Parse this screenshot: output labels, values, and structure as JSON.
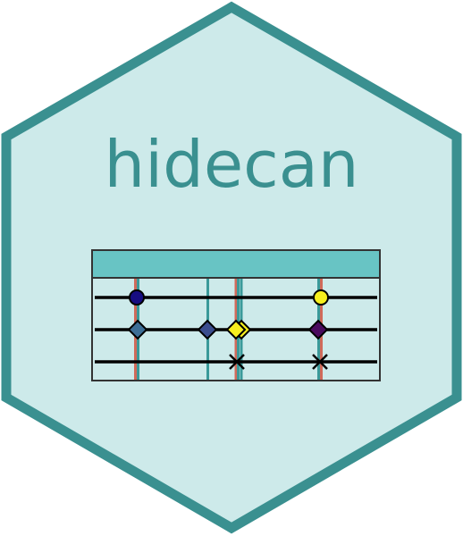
{
  "logo": {
    "title": "hidecan",
    "colors": {
      "background": "#cdeaea",
      "border": "#3a9090",
      "title": "#3a9090",
      "panel_header": "#68c4c4",
      "panel_border": "#333333",
      "teal_line": "#3a9a9a",
      "red_line": "#d06a5a"
    }
  }
}
